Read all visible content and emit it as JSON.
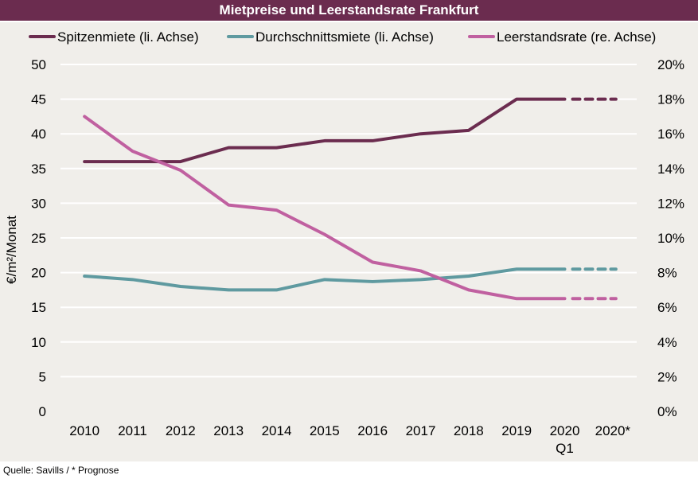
{
  "title": "Mietpreise und Leerstandsrate Frankfurt",
  "source": "Quelle: Savills / * Prognose",
  "chart_data": {
    "type": "line",
    "categories": [
      [
        "2010"
      ],
      [
        "2011"
      ],
      [
        "2012"
      ],
      [
        "2013"
      ],
      [
        "2014"
      ],
      [
        "2015"
      ],
      [
        "2016"
      ],
      [
        "2017"
      ],
      [
        "2018"
      ],
      [
        "2019"
      ],
      [
        "2020",
        "Q1"
      ],
      [
        "2020*"
      ]
    ],
    "ylabel": "€/m²/Monat",
    "ylim": [
      0,
      50
    ],
    "y_ticks": [
      "0",
      "5",
      "10",
      "15",
      "20",
      "25",
      "30",
      "35",
      "40",
      "45",
      "50"
    ],
    "y2lim": [
      0,
      20
    ],
    "y2_ticks": [
      "0%",
      "2%",
      "4%",
      "6%",
      "8%",
      "10%",
      "12%",
      "14%",
      "16%",
      "18%",
      "20%"
    ],
    "grid": true,
    "legend_position": "top",
    "forecast_from_index": 10,
    "series": [
      {
        "name": "Spitzenmiete (li. Achse)",
        "axis": "left",
        "color": "#6b2c4f",
        "values": [
          36,
          36,
          36,
          38,
          38,
          39,
          39,
          40,
          40.5,
          45,
          45,
          45
        ]
      },
      {
        "name": "Durchschnittsmiete (li. Achse)",
        "axis": "left",
        "color": "#5f9aa0",
        "values": [
          19.5,
          19,
          18,
          17.5,
          17.5,
          19,
          18.7,
          19,
          19.5,
          20.5,
          20.5,
          20.5
        ]
      },
      {
        "name": "Leerstandsrate (re. Achse)",
        "axis": "right",
        "color": "#c060a0",
        "values": [
          17,
          15,
          13.9,
          11.9,
          11.6,
          10.2,
          8.6,
          8.1,
          7.0,
          6.5,
          6.5,
          6.5
        ]
      }
    ]
  }
}
